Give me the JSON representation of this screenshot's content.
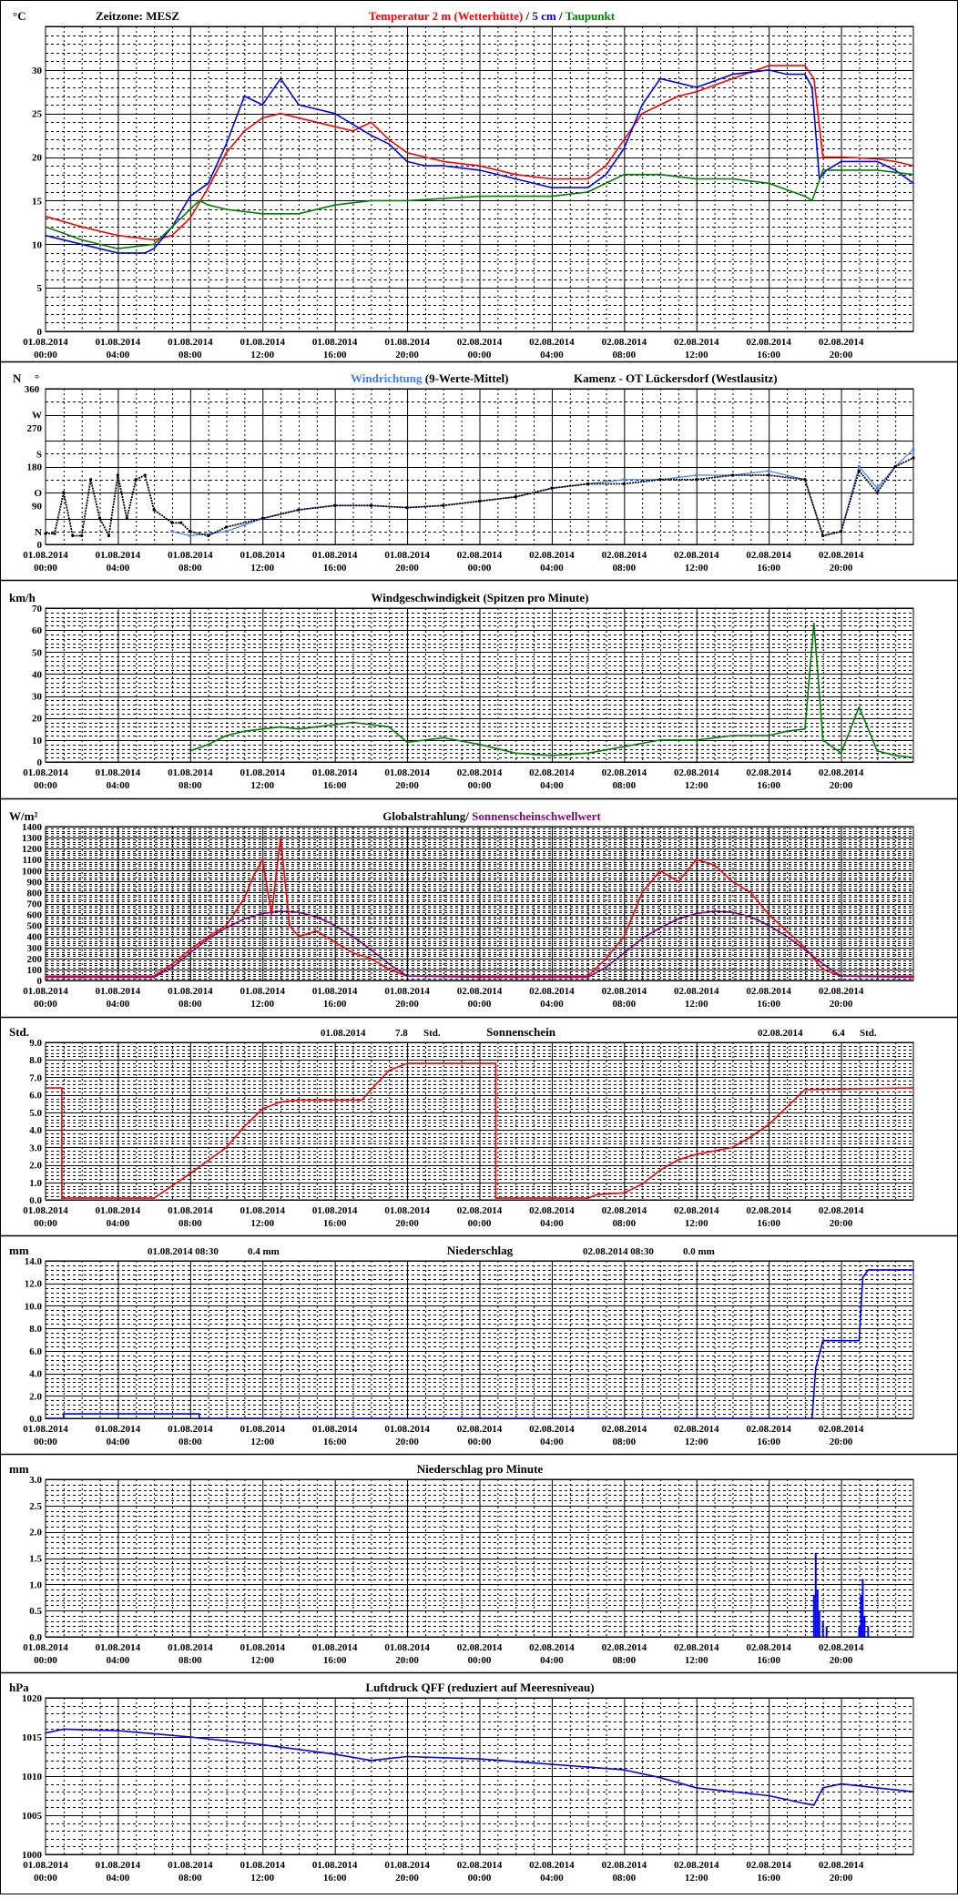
{
  "x_ticks": [
    "01.08.2014|00:00",
    "01.08.2014|04:00",
    "01.08.2014|08:00",
    "01.08.2014|12:00",
    "01.08.2014|16:00",
    "01.08.2014|20:00",
    "02.08.2014|00:00",
    "02.08.2014|04:00",
    "02.08.2014|08:00",
    "02.08.2014|12:00",
    "02.08.2014|16:00",
    "02.08.2014|20:00"
  ],
  "x_range_hours": [
    0,
    48
  ],
  "colors": {
    "red": "#ff0000",
    "blue": "#0000ff",
    "lightblue": "#3d7bff",
    "green": "#008000",
    "purple": "#800080",
    "black": "#000000",
    "grid": "#000000"
  },
  "chart_data": [
    {
      "id": "temperature",
      "type": "line",
      "unit": "°C",
      "timezone": "Zeitzone: MESZ",
      "title_parts": [
        {
          "text": "Temperatur 2 m (Wetterhütte)",
          "color": "#ff0000"
        },
        {
          "text": "  /  ",
          "color": "#000000"
        },
        {
          "text": "5 cm",
          "color": "#0000ff"
        },
        {
          "text": " / ",
          "color": "#000000"
        },
        {
          "text": "Taupunkt",
          "color": "#008000"
        }
      ],
      "ylim": [
        0,
        35
      ],
      "yticks": [
        0,
        5,
        10,
        15,
        20,
        25,
        30,
        35
      ],
      "series": [
        {
          "name": "Temperatur 2 m (Wetterhütte)",
          "color": "#ff0000",
          "x": [
            0,
            2,
            4,
            6,
            7,
            8,
            9,
            10,
            11,
            12,
            13,
            15,
            17,
            18,
            19,
            20,
            21,
            22,
            24,
            26,
            28,
            30,
            31,
            32,
            33,
            34,
            35,
            36,
            38,
            40,
            42,
            42.5,
            43,
            44,
            46,
            47,
            48
          ],
          "y": [
            13.2,
            12,
            11,
            10.5,
            11,
            13,
            16.5,
            20.5,
            23,
            24.5,
            25,
            24,
            23,
            24,
            22,
            20.5,
            20,
            19.5,
            19,
            18,
            17.5,
            17.5,
            19,
            22,
            25,
            26,
            27,
            27.5,
            29,
            30.5,
            30.5,
            29,
            20,
            20,
            19.8,
            19.5,
            19
          ]
        },
        {
          "name": "5 cm",
          "color": "#0000ff",
          "x": [
            0,
            2,
            4,
            5.5,
            6,
            7,
            8,
            9,
            10,
            11,
            12,
            13,
            14,
            16,
            18,
            19,
            20,
            21,
            22,
            24,
            26,
            28,
            30,
            31,
            32,
            33,
            34,
            35,
            36,
            38,
            40,
            41,
            42,
            42.4,
            42.8,
            43.2,
            44,
            46,
            47,
            48
          ],
          "y": [
            11,
            10,
            9,
            9,
            9.5,
            12,
            15.5,
            17,
            21.5,
            27,
            26,
            29,
            26,
            25,
            22.5,
            21.5,
            19.5,
            19,
            19,
            18.5,
            17.5,
            16.5,
            16.5,
            18,
            21,
            26,
            29,
            28.5,
            28,
            29.5,
            30,
            29.5,
            29.5,
            28,
            17.5,
            18.5,
            19.5,
            19.5,
            18.5,
            17
          ]
        },
        {
          "name": "Taupunkt",
          "color": "#008000",
          "x": [
            0,
            2,
            4,
            6,
            7,
            8,
            8.5,
            9,
            10,
            12,
            14,
            16,
            18,
            20,
            24,
            28,
            30,
            32,
            34,
            36,
            38,
            40,
            42,
            42.4,
            43,
            44,
            46,
            48
          ],
          "y": [
            12,
            10.5,
            9.5,
            10,
            12,
            14,
            15,
            14.5,
            14,
            13.5,
            13.5,
            14.5,
            15,
            15,
            15.5,
            15.5,
            16,
            18,
            18,
            17.5,
            17.5,
            17,
            15.5,
            15,
            18.5,
            18.5,
            18.5,
            18
          ]
        }
      ]
    },
    {
      "id": "wind_direction",
      "type": "scatter",
      "unit_label": "N",
      "degree_label": "°",
      "title_parts": [
        {
          "text": "Windrichtung",
          "color": "#3d7bff"
        },
        {
          "text": " (9-Werte-Mittel)",
          "color": "#000000"
        }
      ],
      "station": "Kamenz - OT Lückersdorf (Westlausitz)",
      "ylim": [
        0,
        360
      ],
      "yticks": [
        {
          "v": 360,
          "label": "360"
        },
        {
          "v": 300,
          "label": "W"
        },
        {
          "v": 270,
          "label": "270"
        },
        {
          "v": 210,
          "label": "S"
        },
        {
          "v": 180,
          "label": "180"
        },
        {
          "v": 120,
          "label": "O"
        },
        {
          "v": 90,
          "label": "90"
        },
        {
          "v": 30,
          "label": "N"
        },
        {
          "v": 0,
          "label": "0"
        }
      ],
      "series": [
        {
          "name": "Windrichtung",
          "color": "#3d7bff",
          "x": [
            7,
            8,
            10,
            12,
            14,
            16,
            18,
            20,
            22,
            24,
            26,
            28,
            30,
            32,
            34,
            36,
            38,
            40,
            42,
            43,
            44,
            45,
            46,
            47,
            48
          ],
          "y": [
            30,
            20,
            30,
            60,
            80,
            90,
            90,
            85,
            90,
            100,
            110,
            130,
            140,
            150,
            150,
            160,
            160,
            170,
            150,
            20,
            30,
            180,
            130,
            180,
            220
          ]
        },
        {
          "name": "9-Werte-Mittel",
          "color": "#000000",
          "x": [
            0,
            0.5,
            1,
            1.5,
            2,
            2.5,
            3,
            3.5,
            4,
            4.5,
            5,
            5.5,
            6,
            7,
            7.5,
            8,
            9,
            10,
            12,
            14,
            16,
            18,
            20,
            22,
            24,
            26,
            28,
            30,
            32,
            34,
            36,
            38,
            40,
            42,
            43,
            44,
            45,
            46,
            47,
            48
          ],
          "y": [
            25,
            25,
            120,
            20,
            20,
            150,
            60,
            20,
            160,
            60,
            150,
            160,
            80,
            50,
            50,
            30,
            20,
            40,
            60,
            80,
            90,
            90,
            85,
            90,
            100,
            110,
            130,
            140,
            140,
            150,
            150,
            160,
            160,
            150,
            20,
            30,
            170,
            120,
            180,
            200
          ]
        }
      ]
    },
    {
      "id": "wind_speed",
      "type": "line",
      "unit": "km/h",
      "title": "Windgeschwindigkeit (Spitzen pro Minute)",
      "ylim": [
        0,
        70
      ],
      "yticks": [
        0,
        10,
        20,
        30,
        40,
        50,
        60,
        70
      ],
      "series": [
        {
          "name": "Windgeschwindigkeit",
          "color": "#008000",
          "x": [
            8,
            9,
            10,
            11,
            12,
            13,
            14,
            15,
            16,
            17,
            18,
            19,
            20,
            21,
            22,
            24,
            26,
            28,
            30,
            32,
            34,
            36,
            38,
            40,
            41,
            42,
            42.5,
            43,
            44,
            45,
            46,
            47,
            48
          ],
          "y": [
            5,
            8,
            12,
            14,
            15,
            16,
            15,
            16,
            17,
            18,
            17,
            16,
            9,
            10,
            11,
            8,
            4,
            3,
            4,
            7,
            10,
            10,
            12,
            12,
            14,
            15,
            63,
            10,
            4,
            25,
            5,
            3,
            2
          ]
        }
      ]
    },
    {
      "id": "radiation",
      "type": "line",
      "unit": "W/m²",
      "title_parts": [
        {
          "text": "Globalstrahlung/ ",
          "color": "#000000"
        },
        {
          "text": "Sonnenscheinschwellwert",
          "color": "#800080"
        }
      ],
      "ylim": [
        0,
        1400
      ],
      "yticks": [
        0,
        100,
        200,
        300,
        400,
        500,
        600,
        700,
        800,
        900,
        1000,
        1100,
        1200,
        1300,
        1400
      ],
      "series": [
        {
          "name": "Globalstrahlung",
          "color": "#ff0000",
          "x": [
            0,
            6,
            7,
            8,
            9,
            10,
            11,
            11.5,
            12,
            12.5,
            13,
            13.5,
            14,
            15,
            16,
            17,
            18,
            19,
            20,
            24,
            30,
            31,
            32,
            33,
            34,
            35,
            36,
            37,
            38,
            39,
            40,
            41,
            42,
            43,
            44,
            48
          ],
          "y": [
            40,
            40,
            150,
            280,
            400,
            500,
            750,
            950,
            1100,
            600,
            1300,
            500,
            400,
            450,
            350,
            250,
            200,
            100,
            40,
            40,
            40,
            200,
            400,
            800,
            1000,
            900,
            1100,
            1050,
            900,
            800,
            600,
            450,
            300,
            100,
            40,
            40
          ]
        },
        {
          "name": "Sonnenscheinschwellwert",
          "color": "#800080",
          "x": [
            0,
            6,
            7,
            8,
            9,
            10,
            11,
            12,
            13,
            14,
            15,
            16,
            17,
            18,
            19,
            20,
            24,
            30,
            31,
            32,
            33,
            34,
            35,
            36,
            37,
            38,
            39,
            40,
            41,
            42,
            43,
            44,
            48
          ],
          "y": [
            30,
            30,
            120,
            250,
            380,
            480,
            560,
            610,
            630,
            620,
            580,
            500,
            400,
            280,
            150,
            40,
            30,
            30,
            120,
            250,
            380,
            480,
            560,
            610,
            630,
            620,
            580,
            500,
            400,
            280,
            150,
            40,
            30
          ]
        }
      ]
    },
    {
      "id": "sunshine",
      "type": "line",
      "unit": "Std.",
      "title": "Sonnenschein",
      "sum1_date": "01.08.2014",
      "sum1_value": "7.8",
      "sum1_unit": "Std.",
      "sum2_date": "02.08.2014",
      "sum2_value": "6.4",
      "sum2_unit": "Std.",
      "ylim": [
        0,
        9
      ],
      "yticks": [
        0,
        1,
        2,
        3,
        4,
        5,
        6,
        7,
        8,
        9
      ],
      "ytick_labels": [
        "0.0",
        "1.0",
        "2.0",
        "3.0",
        "4.0",
        "5.0",
        "6.0",
        "7.0",
        "8.0",
        "9.0"
      ],
      "series": [
        {
          "name": "Sonnenschein",
          "color": "#ff0000",
          "x": [
            0,
            0.9,
            0.9,
            6,
            8,
            10,
            11,
            12,
            13,
            14,
            17.5,
            18,
            19,
            20,
            24.9,
            24.9,
            30,
            30.5,
            32,
            33,
            34,
            35,
            36,
            37,
            38,
            39,
            40,
            41,
            42,
            48
          ],
          "y": [
            6.4,
            6.4,
            0.1,
            0.1,
            1.5,
            3,
            4.2,
            5.2,
            5.6,
            5.7,
            5.7,
            6.3,
            7.4,
            7.8,
            7.8,
            0.1,
            0.1,
            0.3,
            0.4,
            0.9,
            1.7,
            2.3,
            2.6,
            2.8,
            3.0,
            3.6,
            4.3,
            5.3,
            6.3,
            6.4
          ]
        }
      ]
    },
    {
      "id": "precip",
      "type": "line",
      "unit": "mm",
      "title": "Niederschlag",
      "sum1_label": "01.08.2014 08:30",
      "sum1_value": "0.4  mm",
      "sum2_label": "02.08.2014 08:30",
      "sum2_value": "0.0   mm",
      "ylim": [
        0,
        14
      ],
      "yticks": [
        0,
        2,
        4,
        6,
        8,
        10,
        12,
        14
      ],
      "ytick_labels": [
        "0.0",
        "2.0",
        "4.0",
        "6.0",
        "8.0",
        "10.0",
        "12.0",
        "14.0"
      ],
      "series": [
        {
          "name": "Niederschlag",
          "color": "#0000ff",
          "x": [
            0,
            1,
            1,
            8.5,
            8.5,
            42.4,
            42.6,
            43,
            45,
            45.2,
            45.5,
            48
          ],
          "y": [
            0,
            0,
            0.4,
            0.4,
            0,
            0,
            4.5,
            6.9,
            6.9,
            12.5,
            13.2,
            13.2
          ]
        }
      ]
    },
    {
      "id": "precip_minute",
      "type": "bar",
      "unit": "mm",
      "title": "Niederschlag pro Minute",
      "ylim": [
        0,
        3
      ],
      "yticks": [
        0,
        0.5,
        1,
        1.5,
        2,
        2.5,
        3
      ],
      "ytick_labels": [
        "0.0",
        "0.5",
        "1.0",
        "1.5",
        "2.0",
        "2.5",
        "3.0"
      ],
      "series": [
        {
          "name": "Niederschlag pro Minute",
          "color": "#0000ff",
          "x": [
            42.5,
            42.6,
            42.7,
            42.8,
            43.0,
            43.2,
            45.0,
            45.1,
            45.2,
            45.3,
            45.5
          ],
          "y": [
            0.8,
            1.6,
            0.9,
            0.5,
            0.3,
            0.2,
            0.2,
            0.8,
            1.1,
            0.4,
            0.2
          ]
        }
      ]
    },
    {
      "id": "pressure",
      "type": "line",
      "unit": "hPa",
      "title": "Luftdruck QFF (reduziert auf Meeresniveau)",
      "ylim": [
        1000,
        1020
      ],
      "yticks": [
        1000,
        1005,
        1010,
        1015,
        1020
      ],
      "series": [
        {
          "name": "Luftdruck QFF",
          "color": "#0000ff",
          "x": [
            0,
            1,
            4,
            8,
            12,
            16,
            18,
            20,
            24,
            28,
            32,
            34,
            36,
            40,
            42,
            42.5,
            43,
            44,
            46,
            48
          ],
          "y": [
            1015.5,
            1016,
            1015.8,
            1015,
            1014,
            1012.8,
            1012,
            1012.5,
            1012.2,
            1011.5,
            1010.8,
            1009.8,
            1008.5,
            1007.5,
            1006.5,
            1006.3,
            1008.5,
            1009,
            1008.5,
            1008
          ]
        }
      ]
    }
  ]
}
